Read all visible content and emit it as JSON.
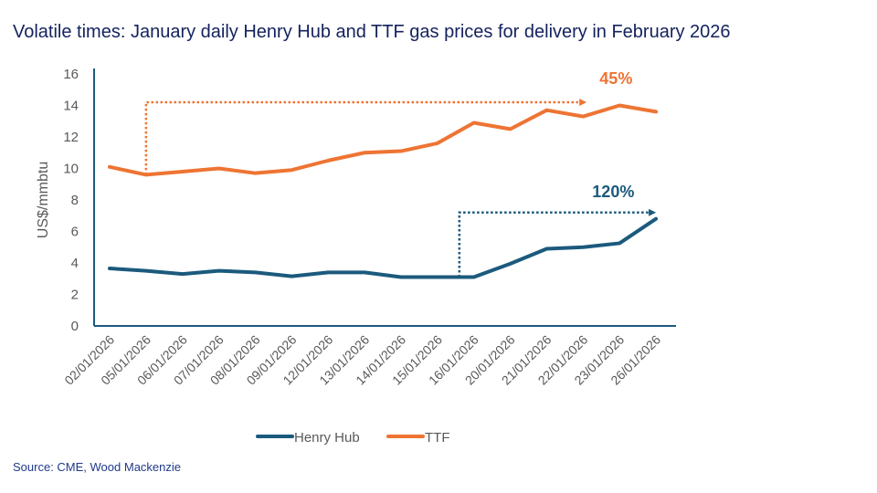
{
  "title": "Volatile times: January daily Henry Hub and TTF gas prices for delivery in February 2026",
  "source": "Source: CME, Wood Mackenzie",
  "colors": {
    "henry_hub": "#1b5a7d",
    "ttf": "#ee7433",
    "axis": "#1b5a7d"
  },
  "chart_data": {
    "type": "line",
    "title": "Volatile times: January daily Henry Hub and TTF gas prices for delivery in February 2026",
    "xlabel": "",
    "ylabel": "US$/mmbtu",
    "ylim": [
      0,
      16
    ],
    "yticks": [
      0,
      2,
      4,
      6,
      8,
      10,
      12,
      14,
      16
    ],
    "grid": false,
    "legend": "bottom",
    "categories": [
      "02/01/2026",
      "05/01/2026",
      "06/01/2026",
      "07/01/2026",
      "08/01/2026",
      "09/01/2026",
      "12/01/2026",
      "13/01/2026",
      "14/01/2026",
      "15/01/2026",
      "16/01/2026",
      "20/01/2026",
      "21/01/2026",
      "22/01/2026",
      "23/01/2026",
      "26/01/2026"
    ],
    "series": [
      {
        "name": "Henry Hub",
        "values": [
          3.65,
          3.5,
          3.3,
          3.5,
          3.4,
          3.15,
          3.4,
          3.4,
          3.1,
          3.1,
          3.1,
          3.95,
          4.9,
          5.0,
          5.25,
          6.8
        ]
      },
      {
        "name": "TTF",
        "values": [
          10.1,
          9.6,
          9.8,
          10.0,
          9.7,
          9.9,
          10.5,
          11.0,
          11.1,
          11.6,
          12.9,
          12.5,
          13.7,
          13.3,
          14.0,
          13.6
        ]
      }
    ],
    "annotations": [
      {
        "text": "45%",
        "series": "TTF"
      },
      {
        "text": "120%",
        "series": "Henry Hub"
      }
    ]
  }
}
